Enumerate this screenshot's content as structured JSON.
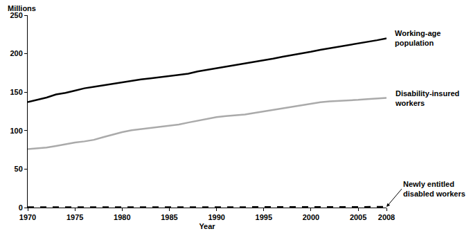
{
  "chart_data": {
    "type": "line",
    "ylabel": "Millions",
    "xlabel": "Year",
    "x": [
      1970,
      1971,
      1972,
      1973,
      1974,
      1975,
      1976,
      1977,
      1978,
      1979,
      1980,
      1981,
      1982,
      1983,
      1984,
      1985,
      1986,
      1987,
      1988,
      1989,
      1990,
      1991,
      1992,
      1993,
      1994,
      1995,
      1996,
      1997,
      1998,
      1999,
      2000,
      2001,
      2002,
      2003,
      2004,
      2005,
      2006,
      2007,
      2008
    ],
    "series": [
      {
        "name": "Working-age population",
        "color": "#000000",
        "line_style": "solid",
        "values": [
          137,
          140,
          143,
          147,
          149,
          152,
          155,
          157,
          159,
          161,
          163,
          165,
          166.5,
          168,
          169.5,
          171,
          172,
          174,
          177,
          179,
          181,
          183,
          185,
          187,
          189,
          191,
          193.5,
          196,
          198,
          200,
          202.5,
          205,
          207,
          209,
          211,
          213,
          215.5,
          217.5,
          220
        ]
      },
      {
        "name": "Disability-insured workers",
        "color": "#aaaaaa",
        "line_style": "solid",
        "values": [
          76,
          77,
          78,
          80,
          82.5,
          84.5,
          86,
          88,
          91.5,
          95,
          98,
          100.5,
          102,
          103,
          104.5,
          106,
          108,
          110.5,
          113,
          115,
          117.5,
          119,
          120,
          121,
          123,
          125,
          127,
          129,
          131,
          133,
          135,
          137,
          138,
          138.5,
          139,
          140,
          141,
          142,
          142.5
        ]
      },
      {
        "name": "Newly entitled disabled workers",
        "color": "#000000",
        "line_style": "dashed",
        "values": [
          0.35,
          0.41,
          0.46,
          0.49,
          0.54,
          0.59,
          0.55,
          0.57,
          0.46,
          0.42,
          0.4,
          0.35,
          0.3,
          0.31,
          0.36,
          0.38,
          0.42,
          0.42,
          0.41,
          0.43,
          0.47,
          0.54,
          0.64,
          0.65,
          0.63,
          0.65,
          0.62,
          0.59,
          0.61,
          0.62,
          0.62,
          0.69,
          0.75,
          0.78,
          0.8,
          0.82,
          0.79,
          0.8,
          0.84
        ]
      }
    ],
    "xlim": [
      1970,
      2008
    ],
    "xticks": [
      1970,
      1975,
      1980,
      1985,
      1990,
      1995,
      2000,
      2005,
      2008
    ],
    "ylim": [
      0,
      250
    ],
    "yticks": [
      0,
      50,
      100,
      150,
      200,
      250
    ],
    "grid": false
  }
}
